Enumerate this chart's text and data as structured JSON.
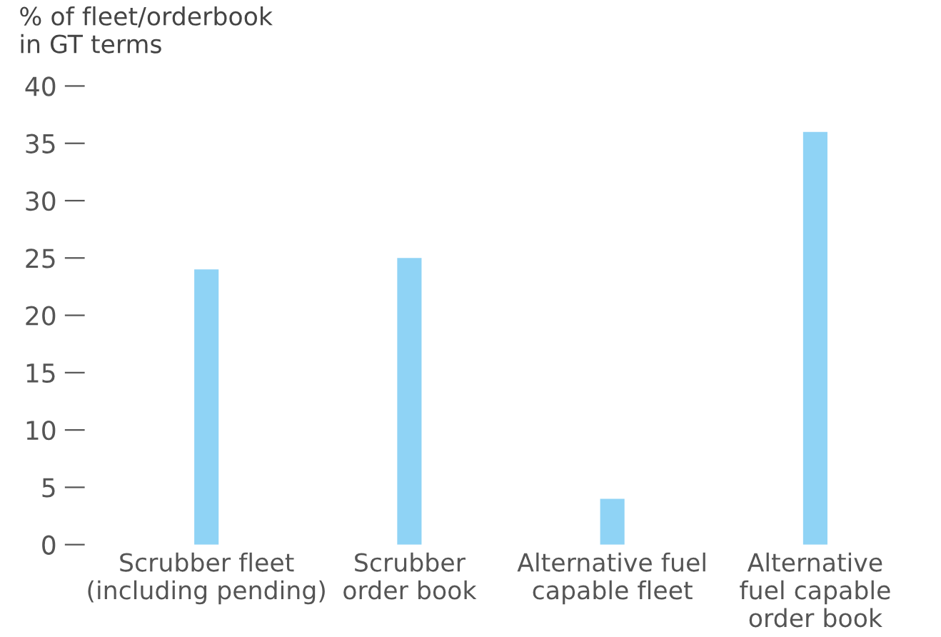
{
  "chart_data": {
    "type": "bar",
    "ylabel": "% of fleet/orderbook\nin GT terms",
    "categories": [
      "Scrubber fleet\n(including pending)",
      "Scrubber\norder book",
      "Alternative fuel\ncapable fleet",
      "Alternative\nfuel capable\norder book"
    ],
    "values": [
      24,
      25,
      4,
      36
    ],
    "color": "#8fd3f5",
    "ylim": [
      0,
      40
    ],
    "yticks": [
      0,
      5,
      10,
      15,
      20,
      25,
      30,
      35,
      40
    ],
    "grid": false
  }
}
